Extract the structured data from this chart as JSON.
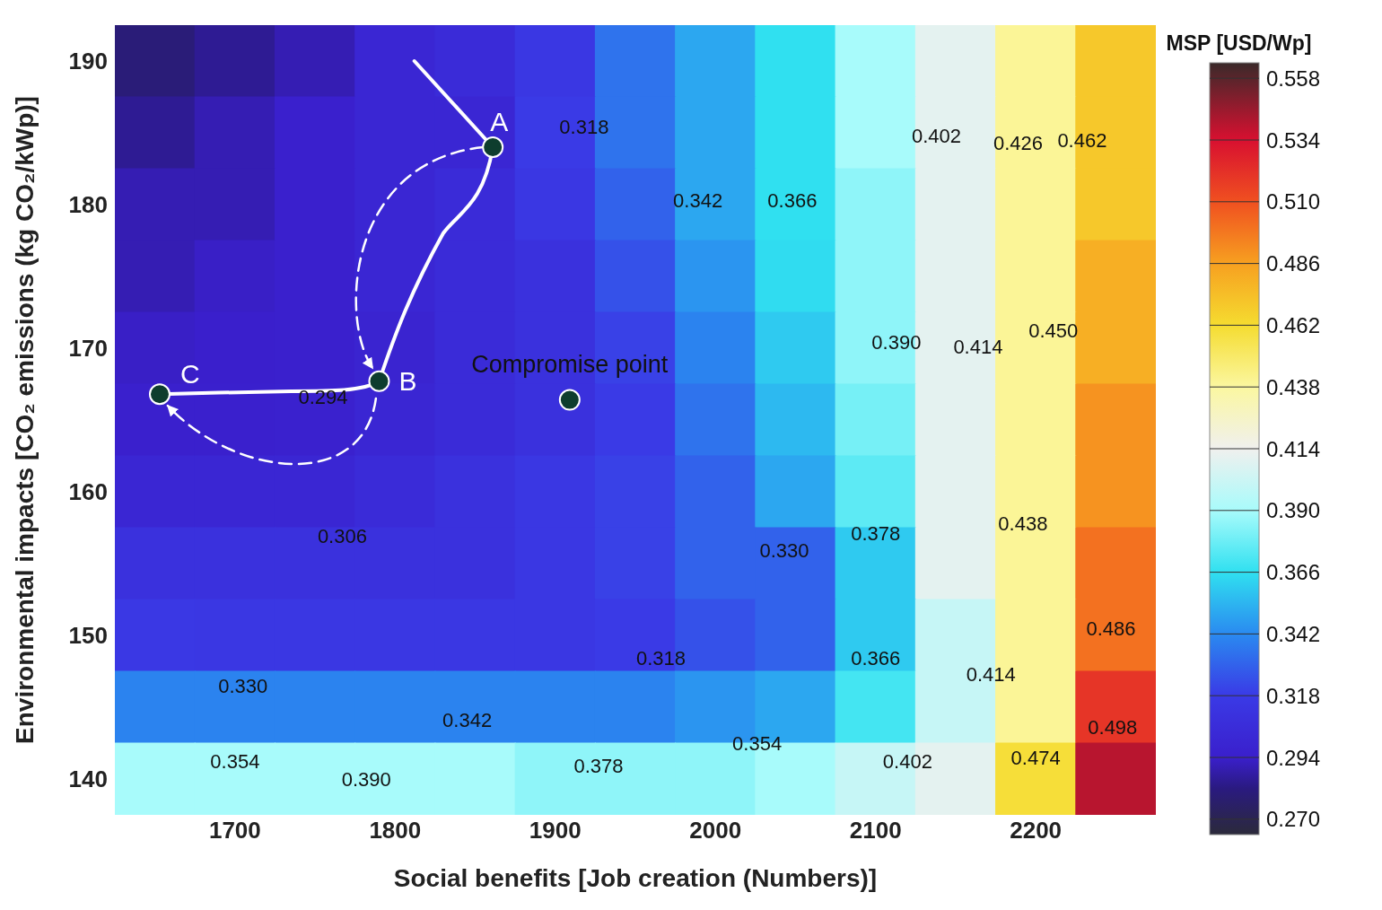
{
  "chart_data": {
    "type": "heatmap",
    "xlabel": "Social benefits [Job creation (Numbers)]",
    "ylabel": "Environmental impacts [CO₂ emissions (kg CO₂/kWp)]",
    "clabel": "MSP [USD/Wp]",
    "categories": [
      null,
      "1700",
      null,
      "1800",
      null,
      "1900",
      null,
      "2000",
      null,
      "2100",
      null,
      "2200",
      null
    ],
    "y_categories": [
      "190",
      null,
      "180",
      null,
      "170",
      null,
      "160",
      null,
      "150",
      null,
      "140"
    ],
    "cells": [
      [
        0.28,
        0.285,
        0.29,
        0.3,
        0.305,
        0.315,
        0.335,
        0.35,
        0.366,
        0.39,
        0.41,
        0.44,
        0.47
      ],
      [
        0.285,
        0.29,
        0.295,
        0.3,
        0.3,
        0.318,
        0.335,
        0.35,
        0.366,
        0.39,
        0.41,
        0.44,
        0.47
      ],
      [
        0.29,
        0.29,
        0.295,
        0.3,
        0.305,
        0.315,
        0.33,
        0.35,
        0.366,
        0.385,
        0.41,
        0.44,
        0.47
      ],
      [
        0.29,
        0.293,
        0.295,
        0.3,
        0.305,
        0.31,
        0.325,
        0.345,
        0.365,
        0.385,
        0.41,
        0.44,
        0.48
      ],
      [
        0.293,
        0.294,
        0.295,
        0.298,
        0.305,
        0.31,
        0.32,
        0.34,
        0.36,
        0.385,
        0.41,
        0.44,
        0.48
      ],
      [
        0.295,
        0.295,
        0.296,
        0.3,
        0.305,
        0.31,
        0.318,
        0.335,
        0.355,
        0.38,
        0.41,
        0.44,
        0.49
      ],
      [
        0.3,
        0.3,
        0.3,
        0.305,
        0.31,
        0.315,
        0.32,
        0.33,
        0.35,
        0.375,
        0.41,
        0.44,
        0.49
      ],
      [
        0.31,
        0.31,
        0.31,
        0.31,
        0.31,
        0.315,
        0.32,
        0.33,
        0.33,
        0.36,
        0.41,
        0.44,
        0.5
      ],
      [
        0.316,
        0.315,
        0.315,
        0.315,
        0.315,
        0.315,
        0.318,
        0.325,
        0.33,
        0.36,
        0.4,
        0.44,
        0.5
      ],
      [
        0.34,
        0.34,
        0.34,
        0.34,
        0.34,
        0.34,
        0.34,
        0.345,
        0.35,
        0.37,
        0.4,
        0.44,
        0.52
      ],
      [
        0.39,
        0.39,
        0.39,
        0.39,
        0.39,
        0.385,
        0.385,
        0.385,
        0.39,
        0.4,
        0.41,
        0.46,
        0.54
      ]
    ],
    "clim": [
      0.264,
      0.564
    ],
    "cticks": [
      {
        "value": 0.27,
        "label": "0.270"
      },
      {
        "value": 0.294,
        "label": "0.294"
      },
      {
        "value": 0.318,
        "label": "0.318"
      },
      {
        "value": 0.342,
        "label": "0.342"
      },
      {
        "value": 0.366,
        "label": "0.366"
      },
      {
        "value": 0.39,
        "label": "0.390"
      },
      {
        "value": 0.414,
        "label": "0.414"
      },
      {
        "value": 0.438,
        "label": "0.438"
      },
      {
        "value": 0.462,
        "label": "0.462"
      },
      {
        "value": 0.486,
        "label": "0.486"
      },
      {
        "value": 0.51,
        "label": "0.510"
      },
      {
        "value": 0.534,
        "label": "0.534"
      },
      {
        "value": 0.558,
        "label": "0.558"
      }
    ],
    "annotations": [
      "0.318",
      "0.342",
      "0.366",
      "0.402",
      "0.426",
      "0.462",
      "0.390",
      "0.414",
      "0.450",
      "0.294",
      "0.306",
      "0.330",
      "0.378",
      "0.438",
      "0.318",
      "0.330",
      "0.342",
      "0.354",
      "0.354",
      "0.366",
      "0.414",
      "0.486",
      "0.378",
      "0.390",
      "0.402",
      "0.474",
      "0.498",
      "Compromise point",
      "A",
      "B",
      "C"
    ]
  }
}
